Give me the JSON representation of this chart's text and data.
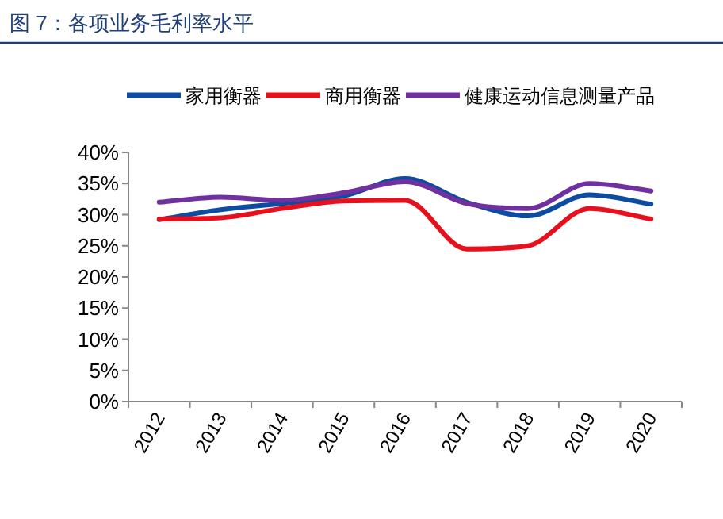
{
  "chart_data": {
    "type": "line",
    "title": "图 7：各项业务毛利率水平",
    "categories": [
      "2012",
      "2013",
      "2014",
      "2015",
      "2016",
      "2017",
      "2018",
      "2019",
      "2020"
    ],
    "series": [
      {
        "name": "家用衡器",
        "color": "#0d4da1",
        "values": [
          29.2,
          30.8,
          31.8,
          33.0,
          35.8,
          32.0,
          29.8,
          33.2,
          31.7
        ]
      },
      {
        "name": "商用衡器",
        "color": "#e8101c",
        "values": [
          29.3,
          29.5,
          31.0,
          32.2,
          32.3,
          24.5,
          25.0,
          31.0,
          29.3
        ]
      },
      {
        "name": "健康运动信息测量产品",
        "color": "#7030a0",
        "values": [
          32.0,
          32.8,
          32.3,
          33.5,
          35.3,
          31.8,
          31.0,
          35.0,
          33.8
        ]
      }
    ],
    "ylim": [
      0,
      40
    ],
    "yticks": [
      {
        "value": 0,
        "label": "0%"
      },
      {
        "value": 5,
        "label": "5%"
      },
      {
        "value": 10,
        "label": "10%"
      },
      {
        "value": 15,
        "label": "15%"
      },
      {
        "value": 20,
        "label": "20%"
      },
      {
        "value": 25,
        "label": "25%"
      },
      {
        "value": 30,
        "label": "30%"
      },
      {
        "value": 35,
        "label": "35%"
      },
      {
        "value": 40,
        "label": "40%"
      }
    ],
    "grid": false,
    "legend": "top",
    "marker": "none",
    "line_style": "solid"
  }
}
